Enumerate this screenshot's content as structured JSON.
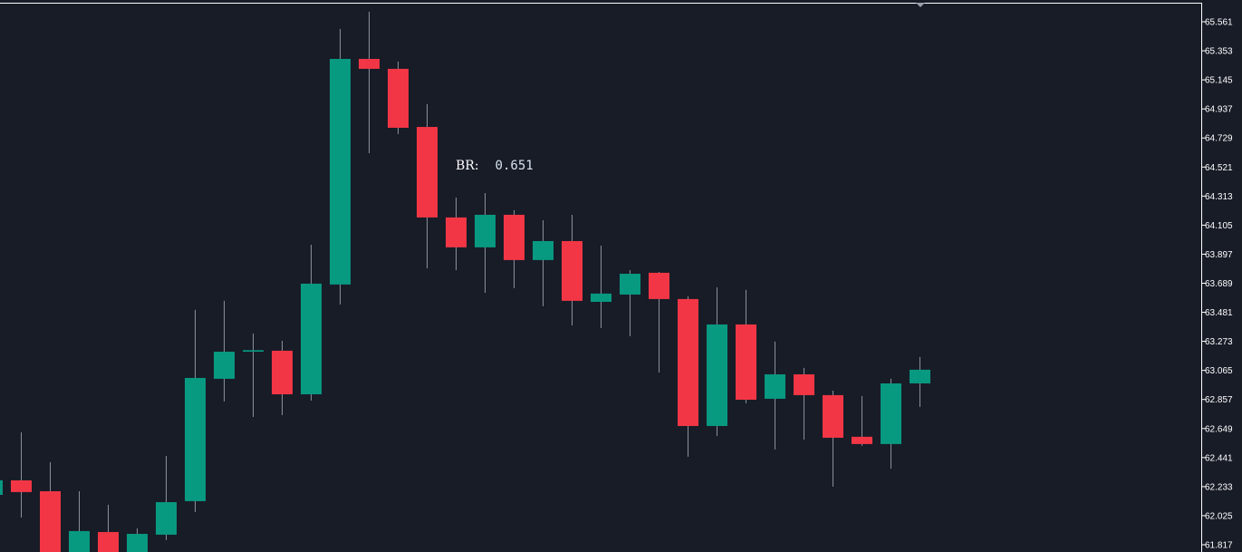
{
  "chart_data": {
    "type": "candlestick",
    "title": "",
    "xlabel": "",
    "ylabel": "",
    "ylim": [
      61.817,
      65.561
    ],
    "y_ticks": [
      "65.561",
      "65.353",
      "65.145",
      "64.937",
      "64.729",
      "64.521",
      "64.313",
      "64.105",
      "63.897",
      "63.689",
      "63.481",
      "63.273",
      "63.065",
      "62.857",
      "62.649",
      "62.441",
      "62.233",
      "62.025",
      "61.817"
    ],
    "grid": false,
    "colors": {
      "background": "#181c27",
      "up": "#089981",
      "down": "#f23645",
      "axis": "#ffffff"
    },
    "candles": [
      {
        "o": 62.174,
        "h": 62.29,
        "l": 62.16,
        "c": 62.278
      },
      {
        "o": 62.278,
        "h": 62.622,
        "l": 62.012,
        "c": 62.194
      },
      {
        "o": 62.2,
        "h": 62.408,
        "l": 61.65,
        "c": 61.694
      },
      {
        "o": 61.7,
        "h": 62.2,
        "l": 61.65,
        "c": 61.915
      },
      {
        "o": 61.908,
        "h": 62.103,
        "l": 61.68,
        "c": 61.72
      },
      {
        "o": 61.74,
        "h": 61.934,
        "l": 61.7,
        "c": 61.895
      },
      {
        "o": 61.889,
        "h": 62.453,
        "l": 61.85,
        "c": 62.122
      },
      {
        "o": 62.129,
        "h": 63.498,
        "l": 62.051,
        "c": 63.011
      },
      {
        "o": 63.005,
        "h": 63.563,
        "l": 62.843,
        "c": 63.199
      },
      {
        "o": 63.199,
        "h": 63.329,
        "l": 62.732,
        "c": 63.21
      },
      {
        "o": 63.206,
        "h": 63.277,
        "l": 62.745,
        "c": 62.894
      },
      {
        "o": 62.894,
        "h": 63.965,
        "l": 62.849,
        "c": 63.686
      },
      {
        "o": 63.68,
        "h": 65.509,
        "l": 63.537,
        "c": 65.295
      },
      {
        "o": 65.295,
        "h": 65.632,
        "l": 64.62,
        "c": 65.224
      },
      {
        "o": 65.224,
        "h": 65.276,
        "l": 64.757,
        "c": 64.802
      },
      {
        "o": 64.808,
        "h": 64.971,
        "l": 63.796,
        "c": 64.16
      },
      {
        "o": 64.16,
        "h": 64.302,
        "l": 63.783,
        "c": 63.946
      },
      {
        "o": 63.946,
        "h": 64.335,
        "l": 63.621,
        "c": 64.179
      },
      {
        "o": 64.179,
        "h": 64.212,
        "l": 63.654,
        "c": 63.855
      },
      {
        "o": 63.855,
        "h": 64.14,
        "l": 63.524,
        "c": 63.991
      },
      {
        "o": 63.991,
        "h": 64.179,
        "l": 63.387,
        "c": 63.563
      },
      {
        "o": 63.556,
        "h": 63.958,
        "l": 63.368,
        "c": 63.615
      },
      {
        "o": 63.608,
        "h": 63.783,
        "l": 63.31,
        "c": 63.757
      },
      {
        "o": 63.764,
        "h": 63.77,
        "l": 63.05,
        "c": 63.576
      },
      {
        "o": 63.576,
        "h": 63.595,
        "l": 62.447,
        "c": 62.667
      },
      {
        "o": 62.667,
        "h": 63.66,
        "l": 62.596,
        "c": 63.394
      },
      {
        "o": 63.394,
        "h": 63.641,
        "l": 62.83,
        "c": 62.855
      },
      {
        "o": 62.862,
        "h": 63.271,
        "l": 62.499,
        "c": 63.037
      },
      {
        "o": 63.037,
        "h": 63.083,
        "l": 62.57,
        "c": 62.888
      },
      {
        "o": 62.888,
        "h": 62.92,
        "l": 62.233,
        "c": 62.583
      },
      {
        "o": 62.59,
        "h": 62.881,
        "l": 62.525,
        "c": 62.538
      },
      {
        "o": 62.538,
        "h": 63.005,
        "l": 62.362,
        "c": 62.972
      },
      {
        "o": 62.972,
        "h": 63.161,
        "l": 62.804,
        "c": 63.07
      }
    ],
    "annotations": [
      {
        "label": "BR:",
        "value": "0.651"
      }
    ]
  }
}
